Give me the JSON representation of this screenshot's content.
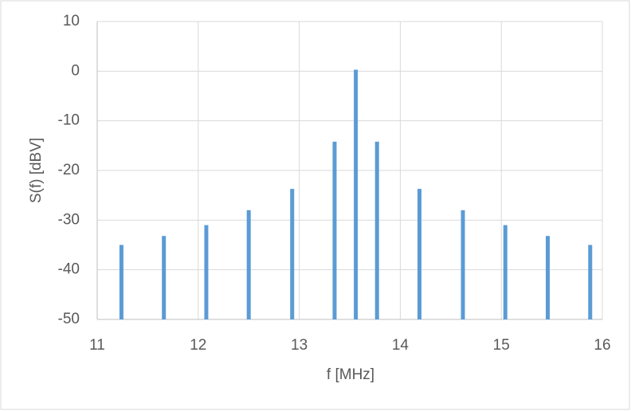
{
  "chart_data": {
    "type": "stem",
    "x_label": "f [MHz]",
    "y_label": "S(f) [dBV]",
    "x": [
      11.24,
      11.66,
      12.08,
      12.5,
      12.93,
      13.35,
      13.56,
      13.77,
      14.19,
      14.62,
      15.04,
      15.46,
      15.88
    ],
    "values": [
      -35,
      -33.2,
      -31,
      -28,
      -23.7,
      -14.2,
      0.3,
      -14.2,
      -23.7,
      -28,
      -31,
      -33.2,
      -35
    ],
    "color": "#5b9bd5",
    "xlim": [
      11,
      16
    ],
    "xticks": [
      11,
      12,
      13,
      14,
      15,
      16
    ],
    "ylim": [
      -50,
      10
    ],
    "yticks": [
      -50,
      -40,
      -30,
      -20,
      -10,
      0,
      10
    ],
    "grid": true
  }
}
